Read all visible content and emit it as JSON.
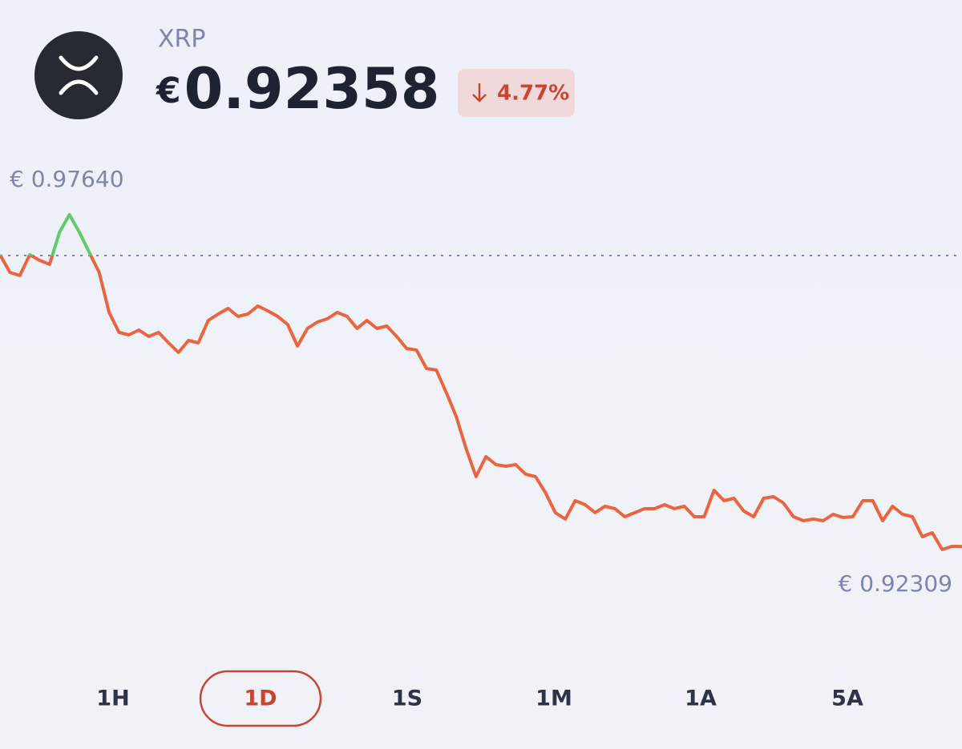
{
  "header": {
    "asset": "XRP",
    "currency": "€",
    "price": "0.92358",
    "change": "4.77%"
  },
  "chart_data": {
    "type": "line",
    "high": {
      "value": 0.9764,
      "label": "€ 0.97640"
    },
    "low": {
      "value": 0.92309,
      "label": "€ 0.92309"
    },
    "baseline": 0.9699,
    "color_up": "#63c96b",
    "color_down": "#ea6440",
    "values": [
      0.97002,
      0.96722,
      0.96671,
      0.97002,
      0.96913,
      0.96849,
      0.97359,
      0.9764,
      0.97359,
      0.97041,
      0.96722,
      0.96084,
      0.95765,
      0.95727,
      0.95803,
      0.95701,
      0.95765,
      0.95599,
      0.95446,
      0.95638,
      0.95599,
      0.95957,
      0.96059,
      0.96148,
      0.9602,
      0.96059,
      0.96186,
      0.9611,
      0.9602,
      0.95893,
      0.95548,
      0.95829,
      0.95931,
      0.95982,
      0.96084,
      0.9602,
      0.95829,
      0.95957,
      0.95829,
      0.95867,
      0.95701,
      0.9551,
      0.95485,
      0.95191,
      0.95166,
      0.94809,
      0.94426,
      0.93916,
      0.93469,
      0.93788,
      0.93661,
      0.93635,
      0.93661,
      0.93508,
      0.93469,
      0.93214,
      0.92896,
      0.92794,
      0.93087,
      0.93023,
      0.92896,
      0.92998,
      0.92959,
      0.92832,
      0.92896,
      0.92959,
      0.92959,
      0.93023,
      0.92959,
      0.92998,
      0.92832,
      0.92832,
      0.93253,
      0.93087,
      0.93125,
      0.92921,
      0.92832,
      0.93125,
      0.93151,
      0.93049,
      0.92832,
      0.92768,
      0.92794,
      0.92768,
      0.9287,
      0.92819,
      0.92832,
      0.93087,
      0.93087,
      0.92768,
      0.92998,
      0.9287,
      0.92832,
      0.92513,
      0.92577,
      0.92309,
      0.9236,
      0.92358
    ]
  },
  "ranges": {
    "options": [
      "1H",
      "1D",
      "1S",
      "1M",
      "1A",
      "5A"
    ],
    "selected": 1
  }
}
